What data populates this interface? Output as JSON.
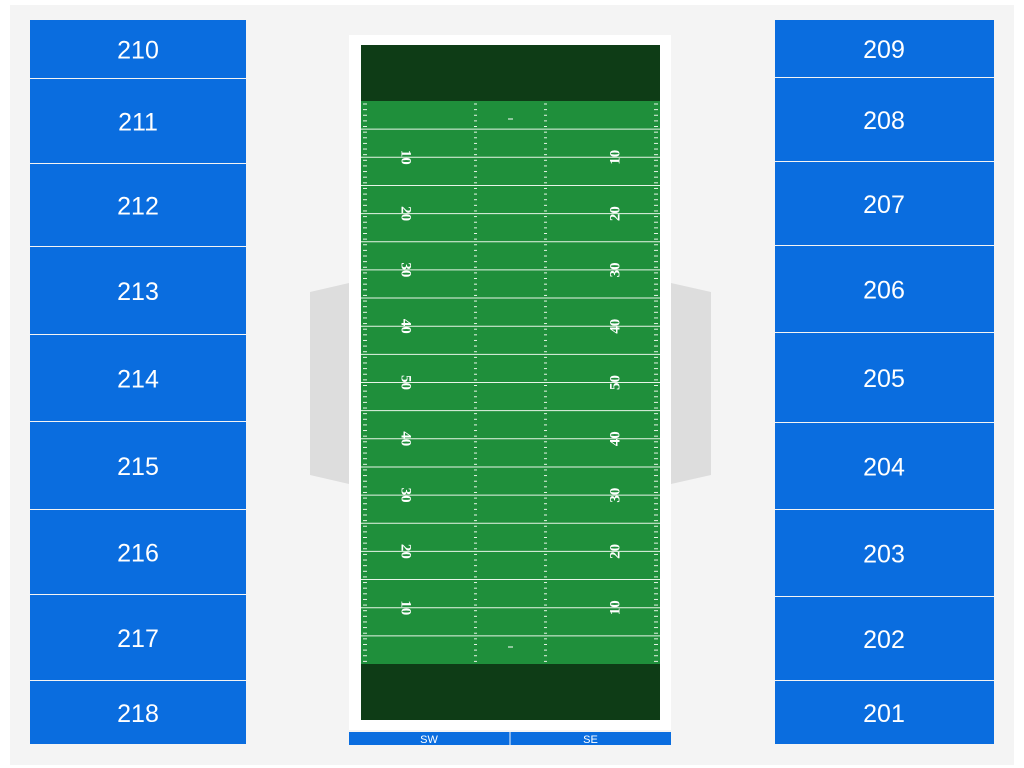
{
  "sections": {
    "left": [
      "210",
      "211",
      "212",
      "213",
      "214",
      "215",
      "216",
      "217",
      "218"
    ],
    "right": [
      "209",
      "208",
      "207",
      "206",
      "205",
      "204",
      "203",
      "202",
      "201"
    ]
  },
  "field": {
    "yard_numbers": [
      "10",
      "20",
      "30",
      "40",
      "50",
      "40",
      "30",
      "20",
      "10"
    ]
  },
  "bottom_sections": [
    "SW",
    "SE"
  ]
}
